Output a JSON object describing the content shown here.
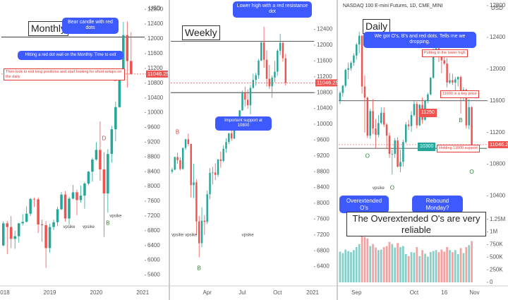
{
  "chart_data": [
    {
      "type": "candlestick",
      "title": "Monthly",
      "currency": "USD",
      "annotations": [
        "Bear candle with red dots",
        "Hitting a red dot wall on the Monthly. Time to exit",
        "Then look to exit long positions and start looking for short setups on the daily"
      ],
      "categories": [
        "2018",
        null,
        null,
        null,
        null,
        null,
        null,
        null,
        null,
        null,
        null,
        null,
        "2019",
        null,
        null,
        null,
        null,
        null,
        null,
        null,
        null,
        null,
        null,
        null,
        "2020",
        null,
        null,
        null,
        null,
        null,
        null,
        null,
        null,
        null,
        null,
        null,
        "2021"
      ],
      "open": [
        6400,
        7000,
        6900,
        6580,
        6650,
        7000,
        7040,
        7260,
        7660,
        7650,
        6970,
        6950,
        6330,
        6900,
        7030,
        7380,
        7780,
        7130,
        7670,
        7840,
        7630,
        7750,
        8080,
        8400,
        8730,
        8990,
        8460,
        7810,
        8880,
        9550,
        10150,
        10900,
        12100,
        11400,
        null,
        null,
        null
      ],
      "high": [
        7050,
        7060,
        7200,
        6800,
        7010,
        7250,
        7460,
        7690,
        7700,
        7700,
        7100,
        7060,
        6990,
        7100,
        7450,
        7850,
        7870,
        7720,
        8040,
        7910,
        8020,
        8120,
        8420,
        8780,
        9200,
        9760,
        8930,
        9010,
        9640,
        10300,
        11030,
        12460,
        12470,
        12180,
        null,
        null,
        null
      ],
      "low": [
        6380,
        6170,
        6330,
        6310,
        6480,
        6940,
        7030,
        7200,
        7440,
        6740,
        6500,
        5790,
        6200,
        6820,
        6920,
        7360,
        7050,
        6960,
        7650,
        7220,
        7560,
        7400,
        8040,
        8130,
        8700,
        8150,
        6630,
        7290,
        8640,
        9220,
        10130,
        10870,
        10680,
        11030,
        null,
        null,
        null
      ],
      "close": [
        7000,
        6900,
        6580,
        6650,
        7000,
        7040,
        7260,
        7660,
        7650,
        6970,
        6950,
        6330,
        6900,
        7030,
        7380,
        7780,
        7130,
        7670,
        7840,
        7630,
        7750,
        8080,
        8400,
        8730,
        8990,
        8460,
        7810,
        8880,
        9550,
        10150,
        10900,
        12100,
        11400,
        11046.25,
        null,
        null,
        null
      ],
      "up_color": "#26a69a",
      "down_color": "#ef5350",
      "ylim": [
        5400,
        12900
      ],
      "yticks": [
        5600,
        6000,
        6400,
        6800,
        7200,
        7600,
        8000,
        8400,
        8800,
        9200,
        9600,
        10000,
        10400,
        10800,
        11200,
        11600,
        12000,
        12400,
        12800
      ],
      "levels": [
        12050
      ],
      "last_price": 11046.25,
      "signals": [
        {
          "label": "D",
          "index": 29,
          "price": 10900,
          "color": "#e53935"
        },
        {
          "label": "D",
          "index": 26,
          "price": 9300,
          "color": "#e53935"
        },
        {
          "label": "B",
          "index": 27,
          "price": 7000,
          "color": "#2e7d32"
        },
        {
          "label": "vpsike",
          "index": 17,
          "price": 6900,
          "color": "#444444"
        },
        {
          "label": "vpsike",
          "index": 22,
          "price": 6900,
          "color": "#444444"
        },
        {
          "label": "vpsike",
          "index": 29,
          "price": 7200,
          "color": "#444444"
        }
      ]
    },
    {
      "type": "candlestick",
      "title": "Weekly",
      "annotations": [
        "Lower high with a red resistance dot",
        "Important support at 10800"
      ],
      "categories": [
        null,
        null,
        null,
        null,
        null,
        null,
        null,
        null,
        null,
        null,
        null,
        null,
        null,
        "Apr",
        null,
        null,
        null,
        null,
        null,
        null,
        null,
        null,
        null,
        null,
        null,
        null,
        "Jul",
        null,
        null,
        null,
        null,
        null,
        null,
        null,
        null,
        null,
        null,
        null,
        null,
        "Oct",
        null,
        null,
        null,
        null,
        null,
        null,
        null,
        null,
        null,
        null,
        null,
        null,
        "2021"
      ],
      "open": [
        8800,
        8850,
        9170,
        9090,
        8870,
        9400,
        9620,
        9500,
        8460,
        8530,
        7540,
        6990,
        7560,
        7530,
        8230,
        8770,
        8780,
        8720,
        9110,
        9070,
        9380,
        9550,
        9770,
        9640,
        10000,
        9870,
        10350,
        10800,
        10620,
        10480,
        10920,
        11120,
        11240,
        11610,
        12070,
        11630,
        11150,
        10960,
        11180,
        11330,
        11860,
        12060,
        11670,
        null,
        null,
        null,
        null,
        null,
        null,
        null,
        null,
        null,
        null
      ],
      "high": [
        8900,
        9180,
        9280,
        9160,
        9410,
        9630,
        9760,
        9510,
        9000,
        8600,
        7680,
        7900,
        7700,
        8320,
        8890,
        8920,
        9010,
        9120,
        9310,
        9470,
        9650,
        9780,
        10070,
        10050,
        10180,
        10360,
        10850,
        10950,
        10880,
        10990,
        11280,
        11300,
        11650,
        12080,
        12470,
        11870,
        11500,
        11230,
        11600,
        11900,
        12290,
        12080,
        11780,
        null,
        null,
        null,
        null,
        null,
        null,
        null,
        null,
        null,
        null
      ],
      "low": [
        8750,
        8840,
        9000,
        8830,
        8850,
        9350,
        9450,
        8150,
        8130,
        7200,
        6630,
        6890,
        7200,
        7480,
        8100,
        8480,
        8590,
        8670,
        8900,
        9040,
        9280,
        9500,
        9580,
        9620,
        9860,
        9850,
        10340,
        10450,
        10390,
        10250,
        10900,
        10980,
        11150,
        11600,
        11430,
        10950,
        10890,
        10670,
        11060,
        11230,
        11750,
        11580,
        10980,
        null,
        null,
        null,
        null,
        null,
        null,
        null,
        null,
        null,
        null
      ],
      "close": [
        8850,
        9170,
        9090,
        8870,
        9400,
        9620,
        9500,
        8460,
        8530,
        7540,
        6990,
        7560,
        7530,
        8230,
        8770,
        8780,
        8720,
        9110,
        9070,
        9380,
        9550,
        9770,
        9640,
        10000,
        9870,
        10350,
        10800,
        10620,
        10480,
        10920,
        11120,
        11240,
        11610,
        12070,
        11630,
        11150,
        10960,
        11180,
        11330,
        11860,
        12060,
        11670,
        11046.25,
        null,
        null,
        null,
        null,
        null,
        null,
        null,
        null,
        null,
        null
      ],
      "up_color": "#26a69a",
      "down_color": "#ef5350",
      "ylim": [
        6000,
        13000
      ],
      "yticks": [
        6400,
        6800,
        7200,
        7600,
        8000,
        8400,
        8800,
        9200,
        9600,
        10000,
        10400,
        10800,
        11200,
        11600,
        12000,
        12400
      ],
      "levels": [
        12100,
        10800
      ],
      "last_price": 11046.25,
      "signals": [
        {
          "label": "B",
          "index": 10,
          "price": 6350,
          "color": "#2e7d32"
        },
        {
          "label": "B",
          "index": 2,
          "price": 9800,
          "color": "#e53935"
        },
        {
          "label": "vpsike",
          "index": 2,
          "price": 7200,
          "color": "#444444"
        },
        {
          "label": "vpsike",
          "index": 7,
          "price": 7200,
          "color": "#444444"
        },
        {
          "label": "vpsike",
          "index": 28,
          "price": 7200,
          "color": "#444444"
        }
      ]
    },
    {
      "type": "candlestick",
      "title": "Daily",
      "header": "NASDAQ 100 E-mini Futures, 1D, CME_MINI",
      "currency": "USD",
      "annotations": [
        "We got O's, B's and red dots. Tells me we dropping.",
        "Putting in the lower high",
        "11600 is a key price",
        "11250",
        "10300",
        "Holding 11000 support",
        "Overextended O's",
        "Rebound Monday?",
        "The Overextended O's are very reliable"
      ],
      "categories": [
        null,
        null,
        null,
        null,
        null,
        null,
        "Sep",
        null,
        null,
        null,
        null,
        null,
        null,
        null,
        null,
        null,
        null,
        null,
        null,
        null,
        null,
        null,
        null,
        null,
        null,
        null,
        null,
        "Oct",
        null,
        null,
        null,
        null,
        null,
        null,
        null,
        null,
        null,
        null,
        "16",
        null,
        null,
        null,
        null,
        null,
        null,
        null,
        null,
        null,
        null,
        "Nov",
        null,
        null,
        null,
        null
      ],
      "open": [
        11600,
        11700,
        11790,
        11990,
        12010,
        12080,
        12170,
        12310,
        12420,
        11780,
        11640,
        11160,
        11470,
        11250,
        11170,
        11320,
        11450,
        11300,
        11160,
        10930,
        10930,
        11100,
        10770,
        10830,
        11080,
        11300,
        11280,
        11420,
        11560,
        11290,
        11550,
        11360,
        11600,
        11680,
        11890,
        12230,
        12260,
        12170,
        12110,
        12070,
        11830,
        11860,
        11830,
        11870,
        11900,
        11640,
        11740,
        11290,
        11520,
        null,
        null,
        null,
        null,
        null
      ],
      "high": [
        11720,
        11800,
        12000,
        12080,
        12100,
        12200,
        12330,
        12470,
        12430,
        11920,
        11650,
        11500,
        11620,
        11370,
        11420,
        11520,
        11520,
        11320,
        11200,
        10980,
        11130,
        11140,
        10980,
        11110,
        11330,
        11360,
        11470,
        11600,
        11590,
        11560,
        11640,
        11610,
        11700,
        11900,
        12260,
        12300,
        12290,
        12190,
        12180,
        12140,
        11950,
        11940,
        11900,
        11910,
        11920,
        11770,
        11750,
        11620,
        11530,
        null,
        null,
        null,
        null,
        null
      ],
      "low": [
        11560,
        11650,
        11770,
        11870,
        11980,
        12040,
        12120,
        12200,
        11690,
        11200,
        11130,
        11120,
        11180,
        11000,
        11140,
        11300,
        11270,
        10990,
        10880,
        10670,
        10880,
        10760,
        10700,
        10770,
        11060,
        11230,
        11210,
        11400,
        11250,
        11280,
        11310,
        11350,
        11570,
        11670,
        11880,
        12150,
        12090,
        11950,
        12050,
        11770,
        11810,
        11800,
        11700,
        11780,
        11440,
        11600,
        11250,
        11240,
        10980,
        null,
        null,
        null,
        null,
        null
      ],
      "close": [
        11700,
        11790,
        11990,
        12010,
        12080,
        12170,
        12310,
        12420,
        11780,
        11640,
        11160,
        11470,
        11250,
        11170,
        11320,
        11450,
        11300,
        11160,
        10930,
        10930,
        11100,
        10770,
        10830,
        11080,
        11300,
        11280,
        11420,
        11560,
        11290,
        11550,
        11360,
        11600,
        11680,
        11890,
        12230,
        12260,
        12170,
        12110,
        12070,
        11830,
        11860,
        11830,
        11870,
        11900,
        11640,
        11740,
        11290,
        11520,
        11046.25,
        null,
        null,
        null,
        null,
        null
      ],
      "volume": [
        610000,
        580000,
        650000,
        620000,
        600000,
        640000,
        700000,
        760000,
        980000,
        900000,
        870000,
        720000,
        760000,
        690000,
        640000,
        650000,
        700000,
        720000,
        800000,
        760000,
        690000,
        780000,
        700000,
        720000,
        560000,
        520000,
        600000,
        590000,
        700000,
        520000,
        640000,
        570000,
        510000,
        600000,
        620000,
        640000,
        600000,
        650000,
        610000,
        700000,
        640000,
        600000,
        640000,
        560000,
        680000,
        580000,
        700000,
        740000,
        820000,
        null,
        null,
        null,
        null,
        null
      ],
      "volume_ylim": [
        0,
        1400000
      ],
      "volume_yticks": [
        0,
        {
          "value": 250000,
          "label": "250K"
        },
        {
          "value": 500000,
          "label": "500K"
        },
        {
          "value": 750000,
          "label": "750K"
        },
        {
          "value": 1000000,
          "label": "1M"
        },
        {
          "value": 1250000,
          "label": "1.25M"
        }
      ],
      "up_color": "#26a69a",
      "down_color": "#ef5350",
      "ylim": [
        10200,
        12800
      ],
      "yticks": [
        10400,
        10800,
        11200,
        11600,
        12000,
        12400,
        12800
      ],
      "levels": [
        11600,
        11000
      ],
      "last_price": 11046.25,
      "signals": [
        {
          "label": "O",
          "index": 10,
          "price": 10900,
          "color": "#2e7d32"
        },
        {
          "label": "O",
          "index": 19,
          "price": 10500,
          "color": "#2e7d32"
        },
        {
          "label": "B",
          "index": 44,
          "price": 11350,
          "color": "#2e7d32"
        },
        {
          "label": "O",
          "index": 48,
          "price": 10700,
          "color": "#2e7d32"
        },
        {
          "label": "vpsike",
          "index": 14,
          "price": 10500,
          "color": "#444444"
        }
      ]
    }
  ]
}
